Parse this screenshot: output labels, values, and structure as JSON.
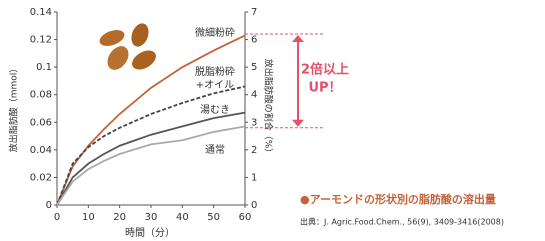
{
  "chart_data": {
    "type": "line",
    "x_label": "時間（分）",
    "y_label": "放出脂肪酸（mmol）",
    "y2_label": "放出脂肪酸の割合（%）",
    "x": [
      0,
      5,
      10,
      15,
      20,
      30,
      40,
      50,
      60
    ],
    "xlim": [
      0,
      60
    ],
    "xticks": [
      0,
      10,
      20,
      30,
      40,
      50,
      60
    ],
    "ylim": [
      0,
      0.14
    ],
    "yticks": [
      0,
      0.02,
      0.04,
      0.06,
      0.08,
      0.1,
      0.12,
      0.14
    ],
    "y2lim": [
      0,
      7
    ],
    "y2ticks": [
      0,
      1,
      2,
      3,
      4,
      5,
      6,
      7
    ],
    "series": [
      {
        "name": "微細粉砕",
        "color": "#c4633a",
        "dash": false,
        "values": [
          0,
          0.028,
          0.043,
          0.055,
          0.066,
          0.085,
          0.1,
          0.112,
          0.123
        ]
      },
      {
        "name": "脱脂粉砕\n+オイル",
        "color": "#444444",
        "dash": true,
        "values": [
          0,
          0.03,
          0.042,
          0.05,
          0.056,
          0.066,
          0.074,
          0.081,
          0.086
        ]
      },
      {
        "name": "湯むき",
        "color": "#555555",
        "dash": false,
        "values": [
          0,
          0.02,
          0.03,
          0.037,
          0.043,
          0.051,
          0.057,
          0.063,
          0.067
        ]
      },
      {
        "name": "通常",
        "color": "#aaaaaa",
        "dash": false,
        "values": [
          0,
          0.017,
          0.026,
          0.032,
          0.037,
          0.044,
          0.047,
          0.053,
          0.057
        ]
      }
    ],
    "reference_lines": {
      "axis": "y2",
      "values": [
        6.2,
        2.8
      ],
      "color": "#e8506a"
    },
    "annotation": [
      "2倍以上",
      "UP！"
    ],
    "caption": "●アーモンドの形状別の脂肪酸の溶出量",
    "source": "出典：J. Agric.Food.Chem., 56(9), 3409-3416(2008)"
  }
}
